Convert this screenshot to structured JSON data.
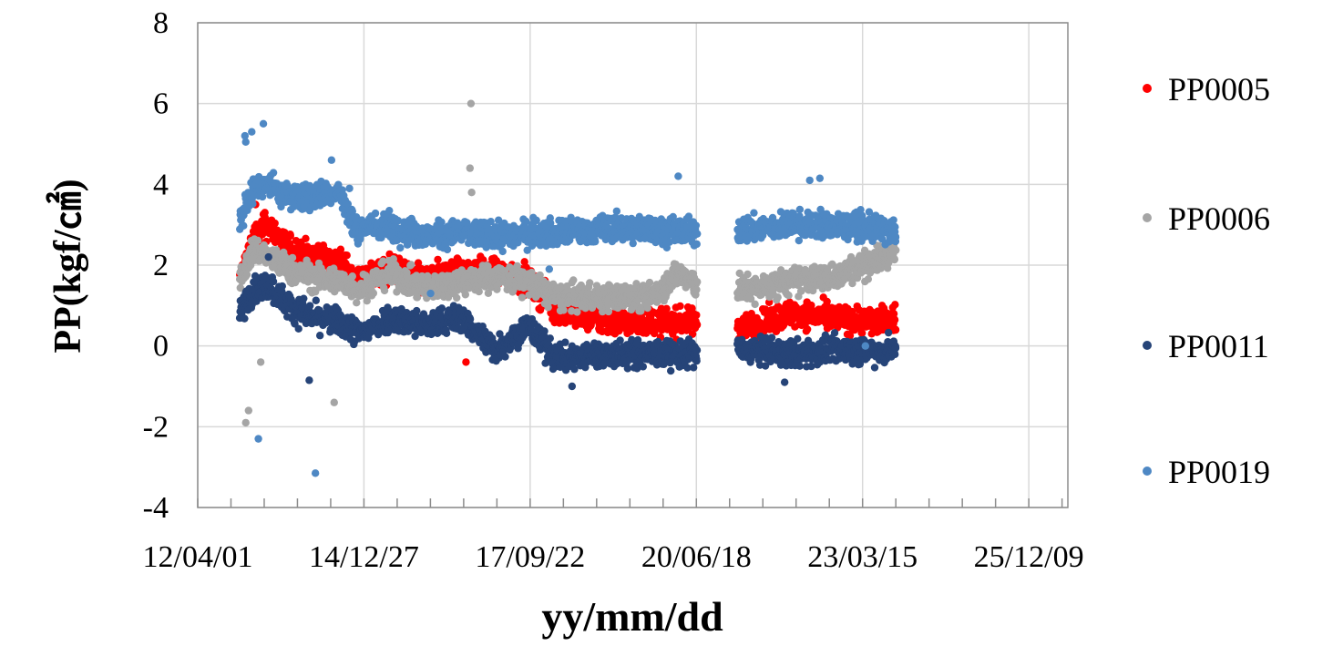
{
  "chart_data": {
    "type": "scatter",
    "title": "",
    "xlabel": "yy/mm/dd",
    "ylabel": "PP(kgf/㎠)",
    "ylim": [
      -4,
      8
    ],
    "yticks": [
      -4,
      -2,
      0,
      2,
      4,
      6,
      8
    ],
    "yticklabels": [
      "-4",
      "-2",
      "0",
      "2",
      "4",
      "6",
      "8"
    ],
    "xlim": [
      "2012-04-01",
      "2026-08-01"
    ],
    "xticks": [
      "2012-04-01",
      "2014-12-27",
      "2017-09-22",
      "2020-06-18",
      "2023-03-15",
      "2025-12-09"
    ],
    "xticklabels": [
      "12/04/01",
      "14/12/27",
      "17/09/22",
      "20/06/18",
      "23/03/15",
      "25/12/09"
    ],
    "grid": true,
    "legend_position": "right",
    "series": [
      {
        "name": "PP0005",
        "color": "#ff0000",
        "profile": [
          [
            "2012-12-10",
            1.6
          ],
          [
            "2013-03-01",
            2.7
          ],
          [
            "2013-06-01",
            3.0
          ],
          [
            "2013-10-01",
            2.4
          ],
          [
            "2014-03-01",
            2.2
          ],
          [
            "2014-08-01",
            2.1
          ],
          [
            "2014-12-01",
            1.6
          ],
          [
            "2015-06-01",
            1.9
          ],
          [
            "2016-01-01",
            1.6
          ],
          [
            "2016-08-01",
            1.9
          ],
          [
            "2017-03-01",
            1.8
          ],
          [
            "2017-09-01",
            1.6
          ],
          [
            "2018-03-01",
            0.9
          ],
          [
            "2019-01-01",
            0.6
          ],
          [
            "2019-09-01",
            0.6
          ],
          [
            "2020-06-15",
            0.6
          ],
          [
            "2021-06-15",
            0.5
          ],
          [
            "2022-01-01",
            0.8
          ],
          [
            "2022-09-01",
            0.7
          ],
          [
            "2023-06-01",
            0.6
          ],
          [
            "2023-10-01",
            0.7
          ]
        ],
        "outliers": [
          [
            "2013-03-15",
            3.5
          ],
          [
            "2013-05-10",
            3.3
          ],
          [
            "2016-09-01",
            -0.4
          ]
        ]
      },
      {
        "name": "PP0006",
        "color": "#a5a5a5",
        "profile": [
          [
            "2012-12-10",
            1.6
          ],
          [
            "2013-03-01",
            2.4
          ],
          [
            "2013-06-01",
            2.2
          ],
          [
            "2013-10-01",
            1.9
          ],
          [
            "2014-03-01",
            1.7
          ],
          [
            "2014-08-01",
            1.6
          ],
          [
            "2014-12-01",
            1.4
          ],
          [
            "2015-06-01",
            1.8
          ],
          [
            "2016-01-01",
            1.4
          ],
          [
            "2016-08-01",
            1.6
          ],
          [
            "2017-03-01",
            1.7
          ],
          [
            "2017-09-01",
            1.6
          ],
          [
            "2018-03-01",
            1.2
          ],
          [
            "2019-01-01",
            1.2
          ],
          [
            "2019-09-01",
            1.2
          ],
          [
            "2020-03-01",
            1.8
          ],
          [
            "2020-06-15",
            1.5
          ],
          [
            "2021-06-15",
            1.4
          ],
          [
            "2022-01-01",
            1.6
          ],
          [
            "2022-09-01",
            1.7
          ],
          [
            "2023-06-01",
            2.1
          ],
          [
            "2023-10-01",
            2.4
          ]
        ],
        "outliers": [
          [
            "2013-01-15",
            -1.9
          ],
          [
            "2013-02-01",
            -1.6
          ],
          [
            "2013-04-15",
            -0.4
          ],
          [
            "2014-07-01",
            -1.4
          ],
          [
            "2016-10-01",
            6.0
          ],
          [
            "2016-09-25",
            4.4
          ],
          [
            "2016-10-05",
            3.8
          ]
        ]
      },
      {
        "name": "PP0011",
        "color": "#264478",
        "profile": [
          [
            "2012-12-10",
            0.8
          ],
          [
            "2013-03-01",
            1.4
          ],
          [
            "2013-06-01",
            1.5
          ],
          [
            "2013-10-01",
            1.0
          ],
          [
            "2014-03-01",
            0.7
          ],
          [
            "2014-08-01",
            0.6
          ],
          [
            "2014-12-01",
            0.3
          ],
          [
            "2015-06-01",
            0.7
          ],
          [
            "2016-01-01",
            0.5
          ],
          [
            "2016-08-01",
            0.7
          ],
          [
            "2017-03-01",
            -0.1
          ],
          [
            "2017-09-01",
            0.5
          ],
          [
            "2018-03-01",
            -0.3
          ],
          [
            "2019-01-01",
            -0.2
          ],
          [
            "2019-09-01",
            -0.2
          ],
          [
            "2020-06-15",
            -0.2
          ],
          [
            "2021-06-15",
            -0.1
          ],
          [
            "2022-01-01",
            -0.2
          ],
          [
            "2022-09-01",
            -0.1
          ],
          [
            "2023-06-01",
            -0.1
          ],
          [
            "2023-10-01",
            -0.1
          ]
        ],
        "outliers": [
          [
            "2014-02-01",
            -0.85
          ],
          [
            "2013-06-01",
            2.2
          ],
          [
            "2018-06-01",
            -1.0
          ],
          [
            "2021-12-01",
            -0.9
          ]
        ]
      },
      {
        "name": "PP0019",
        "color": "#4e88c4",
        "profile": [
          [
            "2012-12-10",
            3.1
          ],
          [
            "2013-03-01",
            3.9
          ],
          [
            "2013-06-01",
            4.0
          ],
          [
            "2013-10-01",
            3.7
          ],
          [
            "2014-03-01",
            3.7
          ],
          [
            "2014-08-01",
            3.8
          ],
          [
            "2014-11-01",
            2.9
          ],
          [
            "2015-06-01",
            3.0
          ],
          [
            "2016-01-01",
            2.7
          ],
          [
            "2016-08-01",
            2.8
          ],
          [
            "2017-03-01",
            2.7
          ],
          [
            "2017-09-01",
            2.8
          ],
          [
            "2018-03-01",
            2.8
          ],
          [
            "2019-01-01",
            2.9
          ],
          [
            "2019-09-01",
            2.9
          ],
          [
            "2020-06-15",
            2.8
          ],
          [
            "2021-06-15",
            2.9
          ],
          [
            "2022-01-01",
            3.0
          ],
          [
            "2022-09-01",
            3.0
          ],
          [
            "2023-06-01",
            2.9
          ],
          [
            "2023-10-01",
            2.8
          ]
        ],
        "outliers": [
          [
            "2013-01-10",
            5.2
          ],
          [
            "2013-02-20",
            5.3
          ],
          [
            "2013-05-01",
            5.5
          ],
          [
            "2013-01-15",
            5.05
          ],
          [
            "2013-04-01",
            -2.3
          ],
          [
            "2014-03-10",
            -3.15
          ],
          [
            "2014-06-15",
            4.6
          ],
          [
            "2014-10-01",
            3.9
          ],
          [
            "2016-02-01",
            1.3
          ],
          [
            "2018-01-15",
            1.9
          ],
          [
            "2020-03-01",
            4.2
          ],
          [
            "2022-05-01",
            4.1
          ],
          [
            "2022-07-01",
            4.15
          ],
          [
            "2023-04-01",
            0.0
          ]
        ]
      }
    ]
  }
}
